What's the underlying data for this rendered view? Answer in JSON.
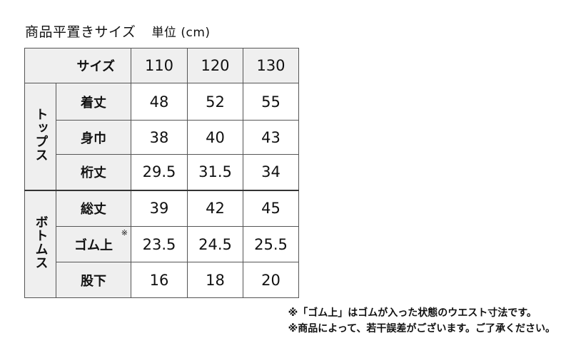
{
  "title": "商品平置きサイズ",
  "unit": "単位 (cm)",
  "header": {
    "label": "サイズ",
    "sizes": [
      "110",
      "120",
      "130"
    ]
  },
  "groups": [
    {
      "name": "トップス",
      "rows": [
        {
          "label": "着丈",
          "values": [
            "48",
            "52",
            "55"
          ]
        },
        {
          "label": "身巾",
          "values": [
            "38",
            "40",
            "43"
          ]
        },
        {
          "label": "桁丈",
          "values": [
            "29.5",
            "31.5",
            "34"
          ]
        }
      ]
    },
    {
      "name": "ボトムス",
      "rows": [
        {
          "label": "総丈",
          "values": [
            "39",
            "42",
            "45"
          ]
        },
        {
          "label": "ゴム上",
          "mark": "※",
          "values": [
            "23.5",
            "24.5",
            "25.5"
          ]
        },
        {
          "label": "股下",
          "values": [
            "16",
            "18",
            "20"
          ]
        }
      ]
    }
  ],
  "notes": [
    "※「ゴム上」はゴムが入った状態のウエスト寸法です。",
    "※商品によって、若干誤差がございます。ご了承ください。"
  ],
  "colors": {
    "header_bg": "#efefef",
    "border": "#555555"
  }
}
